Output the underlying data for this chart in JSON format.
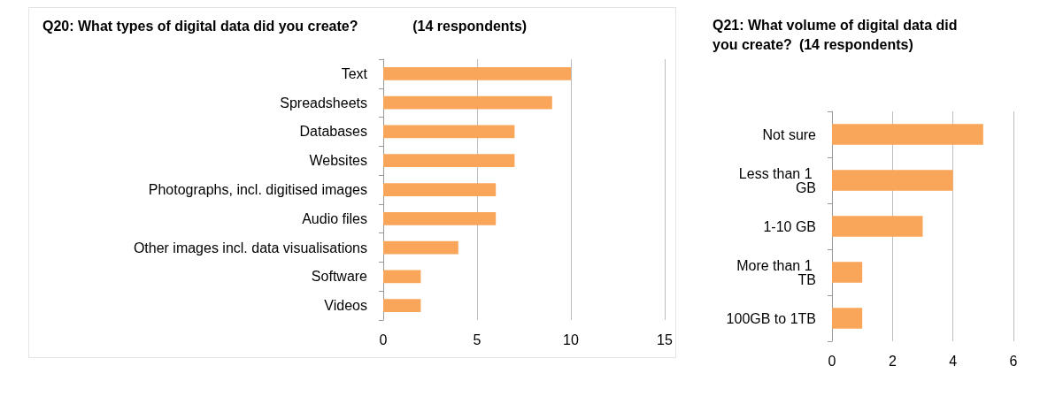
{
  "chart_data": [
    {
      "type": "bar",
      "orientation": "horizontal",
      "title": "Q20: What types of digital data did you create?",
      "subtitle": "(14 respondents)",
      "categories": [
        "Text",
        "Spreadsheets",
        "Databases",
        "Websites",
        "Photographs, incl. digitised images",
        "Audio files",
        "Other images incl. data visualisations",
        "Software",
        "Videos"
      ],
      "values": [
        10,
        9,
        7,
        7,
        6,
        6,
        4,
        2,
        2
      ],
      "color": "#f9a65a",
      "xlim": [
        0,
        15
      ],
      "xticks": [
        0,
        5,
        10,
        15
      ],
      "grid": "x"
    },
    {
      "type": "bar",
      "orientation": "horizontal",
      "title": "Q21: What volume of digital data did you create?",
      "subtitle": "(14 respondents)",
      "categories": [
        "Not sure",
        "Less than 1 GB",
        "1-10 GB",
        "More than 1 TB",
        "100GB to 1TB"
      ],
      "values": [
        5,
        4,
        3,
        1,
        1
      ],
      "color": "#f9a65a",
      "xlim": [
        0,
        6
      ],
      "xticks": [
        0,
        2,
        4,
        6
      ],
      "grid": "x"
    }
  ]
}
